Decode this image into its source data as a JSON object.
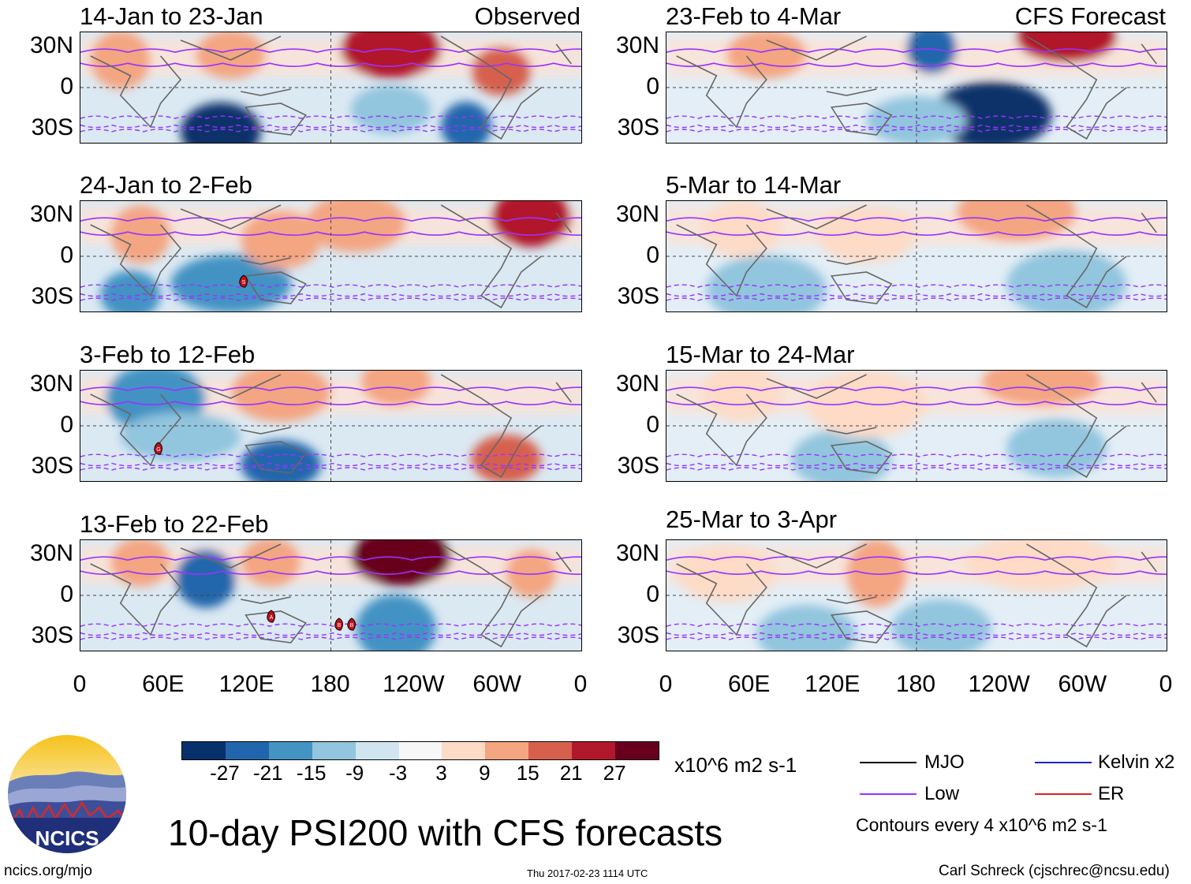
{
  "figure": {
    "title": "10-day PSI200 with CFS forecasts",
    "website": "ncics.org/mjo",
    "timestamp": "Thu 2017-02-23 1114 UTC",
    "author": "Carl Schreck (cjschrec@ncsu.edu)",
    "logo_text": "NCICS"
  },
  "labels": {
    "observed": "Observed",
    "forecast": "CFS Forecast"
  },
  "lat_labels": [
    "30N",
    "0",
    "30S"
  ],
  "lon_labels": [
    "0",
    "60E",
    "120E",
    "180",
    "120W",
    "60W",
    "0"
  ],
  "panels_left": [
    {
      "title": "14-Jan to 23-Jan"
    },
    {
      "title": "24-Jan to 2-Feb"
    },
    {
      "title": "3-Feb to 12-Feb"
    },
    {
      "title": "13-Feb to 22-Feb"
    }
  ],
  "panels_right": [
    {
      "title": "23-Feb to 4-Mar"
    },
    {
      "title": "5-Mar to 14-Mar"
    },
    {
      "title": "15-Mar to 24-Mar"
    },
    {
      "title": "25-Mar to 3-Apr"
    }
  ],
  "colorbar": {
    "ticks": [
      "-27",
      "-21",
      "-15",
      "-9",
      "-3",
      "3",
      "9",
      "15",
      "21",
      "27"
    ],
    "colors": [
      "#08306b",
      "#2166ac",
      "#4393c3",
      "#92c5de",
      "#d1e5f0",
      "#f7f7f7",
      "#fddbc7",
      "#f4a582",
      "#d6604d",
      "#b2182b",
      "#67001f"
    ],
    "units": "x10^6 m2 s-1"
  },
  "legend": {
    "items": [
      {
        "name": "MJO",
        "color": "#000000"
      },
      {
        "name": "Low",
        "color": "#9933ff"
      },
      {
        "name": "Kelvin x2",
        "color": "#2222cc"
      },
      {
        "name": "ER",
        "color": "#dd2222"
      }
    ],
    "contour_note": "Contours every 4 x10^6 m2 s-1"
  },
  "storm_markers": [
    "S",
    "G",
    "A",
    "B",
    "B"
  ]
}
